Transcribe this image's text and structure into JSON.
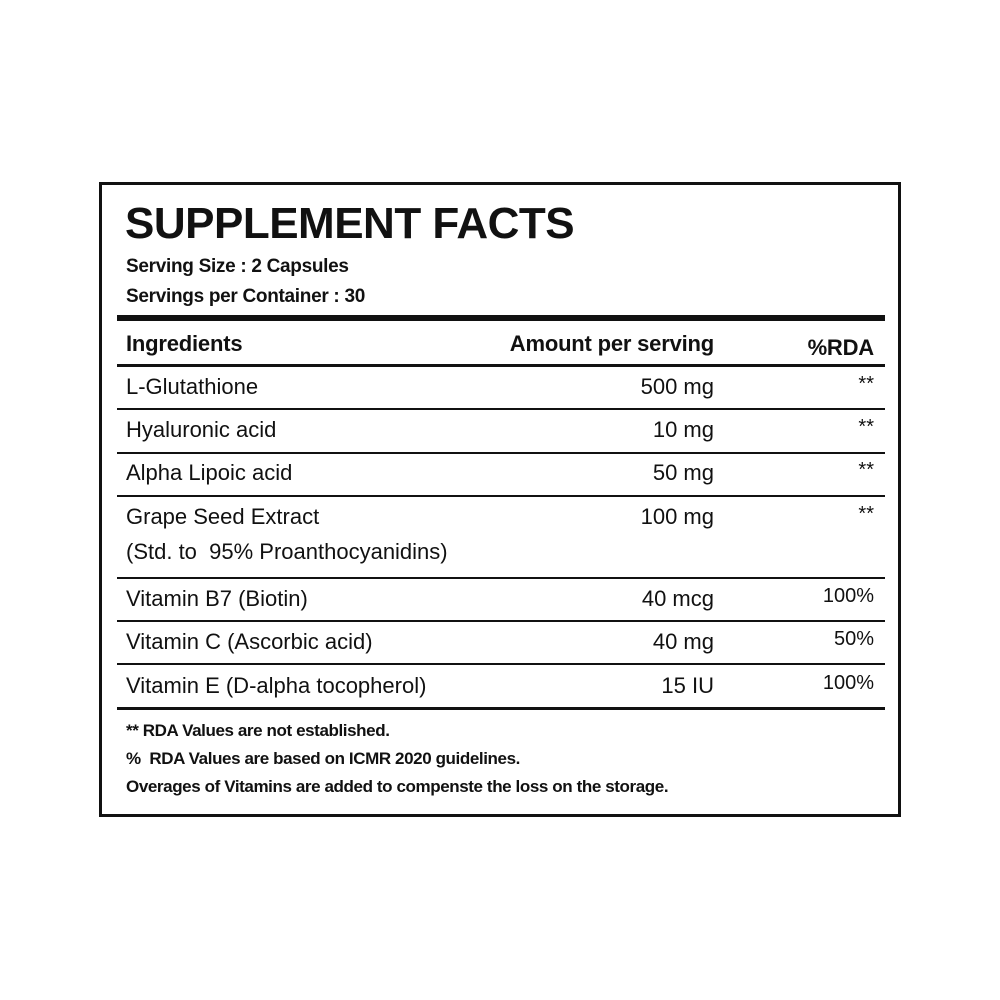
{
  "header": {
    "title": "SUPPLEMENT FACTS",
    "serving_size": "Serving Size : 2 Capsules",
    "servings_per_container": "Servings per Container : 30"
  },
  "table": {
    "columns": [
      "Ingredients",
      "Amount per serving",
      "%RDA"
    ],
    "rows": [
      {
        "ingredient": "L-Glutathione",
        "amount": "500 mg",
        "rda": "**"
      },
      {
        "ingredient": "Hyaluronic acid",
        "amount": "10 mg",
        "rda": "**"
      },
      {
        "ingredient": "Alpha Lipoic acid",
        "amount": "50 mg",
        "rda": "**"
      },
      {
        "ingredient": "Grape Seed Extract",
        "detail": "(Std. to  95% Proanthocyanidins)",
        "amount": "100 mg",
        "rda": "**"
      },
      {
        "ingredient": "Vitamin B7 (Biotin)",
        "amount": "40 mcg",
        "rda": "100%"
      },
      {
        "ingredient": "Vitamin C (Ascorbic acid)",
        "amount": "40 mg",
        "rda": "50%"
      },
      {
        "ingredient": "Vitamin E (D-alpha tocopherol)",
        "amount": "15 IU",
        "rda": "100%"
      }
    ]
  },
  "footnotes": [
    "** RDA Values are not established.",
    "%  RDA Values are based on ICMR 2020 guidelines.",
    "Overages of Vitamins are added to compenste the loss on the storage."
  ]
}
